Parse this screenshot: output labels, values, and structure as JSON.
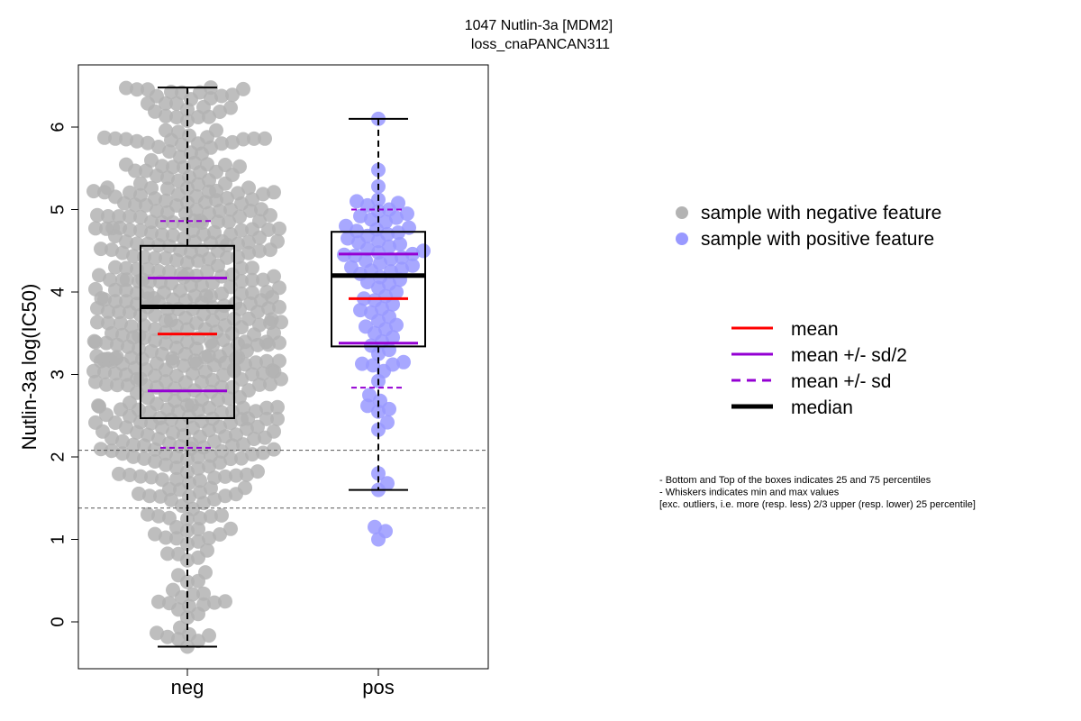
{
  "chart_data": {
    "type": "boxplot",
    "title_line1": "1047 Nutlin-3a [MDM2]",
    "title_line2": "loss_cnaPANCAN311",
    "ylabel": "Nutlin-3a log(IC50)",
    "ylim": [
      -0.6,
      6.75
    ],
    "yticks": [
      0,
      1,
      2,
      3,
      4,
      5,
      6
    ],
    "categories": [
      "neg",
      "pos"
    ],
    "reference_lines": [
      2.08,
      1.38
    ],
    "groups": [
      {
        "name": "neg",
        "color": "#b3b3b3",
        "whisker_low": -0.3,
        "q1": 2.47,
        "median": 3.82,
        "q3": 4.56,
        "whisker_high": 6.48,
        "mean": 3.49,
        "mean_minus_half_sd": 2.8,
        "mean_plus_half_sd": 4.17,
        "mean_minus_sd": 2.11,
        "mean_plus_sd": 4.86,
        "n_points": 560
      },
      {
        "name": "pos",
        "color": "#9999ff",
        "whisker_low": 1.6,
        "q1": 3.34,
        "median": 4.2,
        "q3": 4.73,
        "whisker_high": 6.1,
        "mean": 3.92,
        "mean_minus_half_sd": 3.38,
        "mean_plus_half_sd": 4.46,
        "mean_minus_sd": 2.84,
        "mean_plus_sd": 5.0,
        "points": [
          6.1,
          5.48,
          5.28,
          5.12,
          5.1,
          5.08,
          5.05,
          5.0,
          4.98,
          4.95,
          4.92,
          4.9,
          4.88,
          4.85,
          4.8,
          4.78,
          4.76,
          4.74,
          4.72,
          4.7,
          4.68,
          4.65,
          4.62,
          4.6,
          4.58,
          4.55,
          4.52,
          4.5,
          4.48,
          4.46,
          4.45,
          4.44,
          4.42,
          4.4,
          4.38,
          4.35,
          4.32,
          4.3,
          4.28,
          4.26,
          4.25,
          4.22,
          4.18,
          4.15,
          4.12,
          4.1,
          4.05,
          4.0,
          3.95,
          3.92,
          3.9,
          3.85,
          3.8,
          3.78,
          3.75,
          3.7,
          3.65,
          3.6,
          3.58,
          3.55,
          3.5,
          3.45,
          3.4,
          3.35,
          3.3,
          3.25,
          3.15,
          3.13,
          3.12,
          3.11,
          3.04,
          2.92,
          2.75,
          2.68,
          2.62,
          2.58,
          2.55,
          2.42,
          2.33,
          1.8,
          1.68,
          1.6,
          1.15,
          1.1,
          1.0
        ]
      }
    ],
    "legend_points": [
      {
        "label": "sample with negative feature",
        "color": "#b3b3b3"
      },
      {
        "label": "sample with positive feature",
        "color": "#9999ff"
      }
    ],
    "legend_lines": [
      {
        "label": "mean",
        "color": "#ff0000",
        "style": "solid"
      },
      {
        "label": "mean +/- sd/2",
        "color": "#9400d3",
        "style": "solid"
      },
      {
        "label": "mean +/- sd",
        "color": "#9400d3",
        "style": "dashed"
      },
      {
        "label": "median",
        "color": "#000000",
        "style": "solid-thick"
      }
    ],
    "notes": [
      "- Bottom and Top of the boxes indicates 25 and 75 percentiles",
      "- Whiskers indicates min and max values",
      "[exc. outliers, i.e. more (resp. less) 2/3 upper (resp. lower) 25 percentile]"
    ]
  }
}
